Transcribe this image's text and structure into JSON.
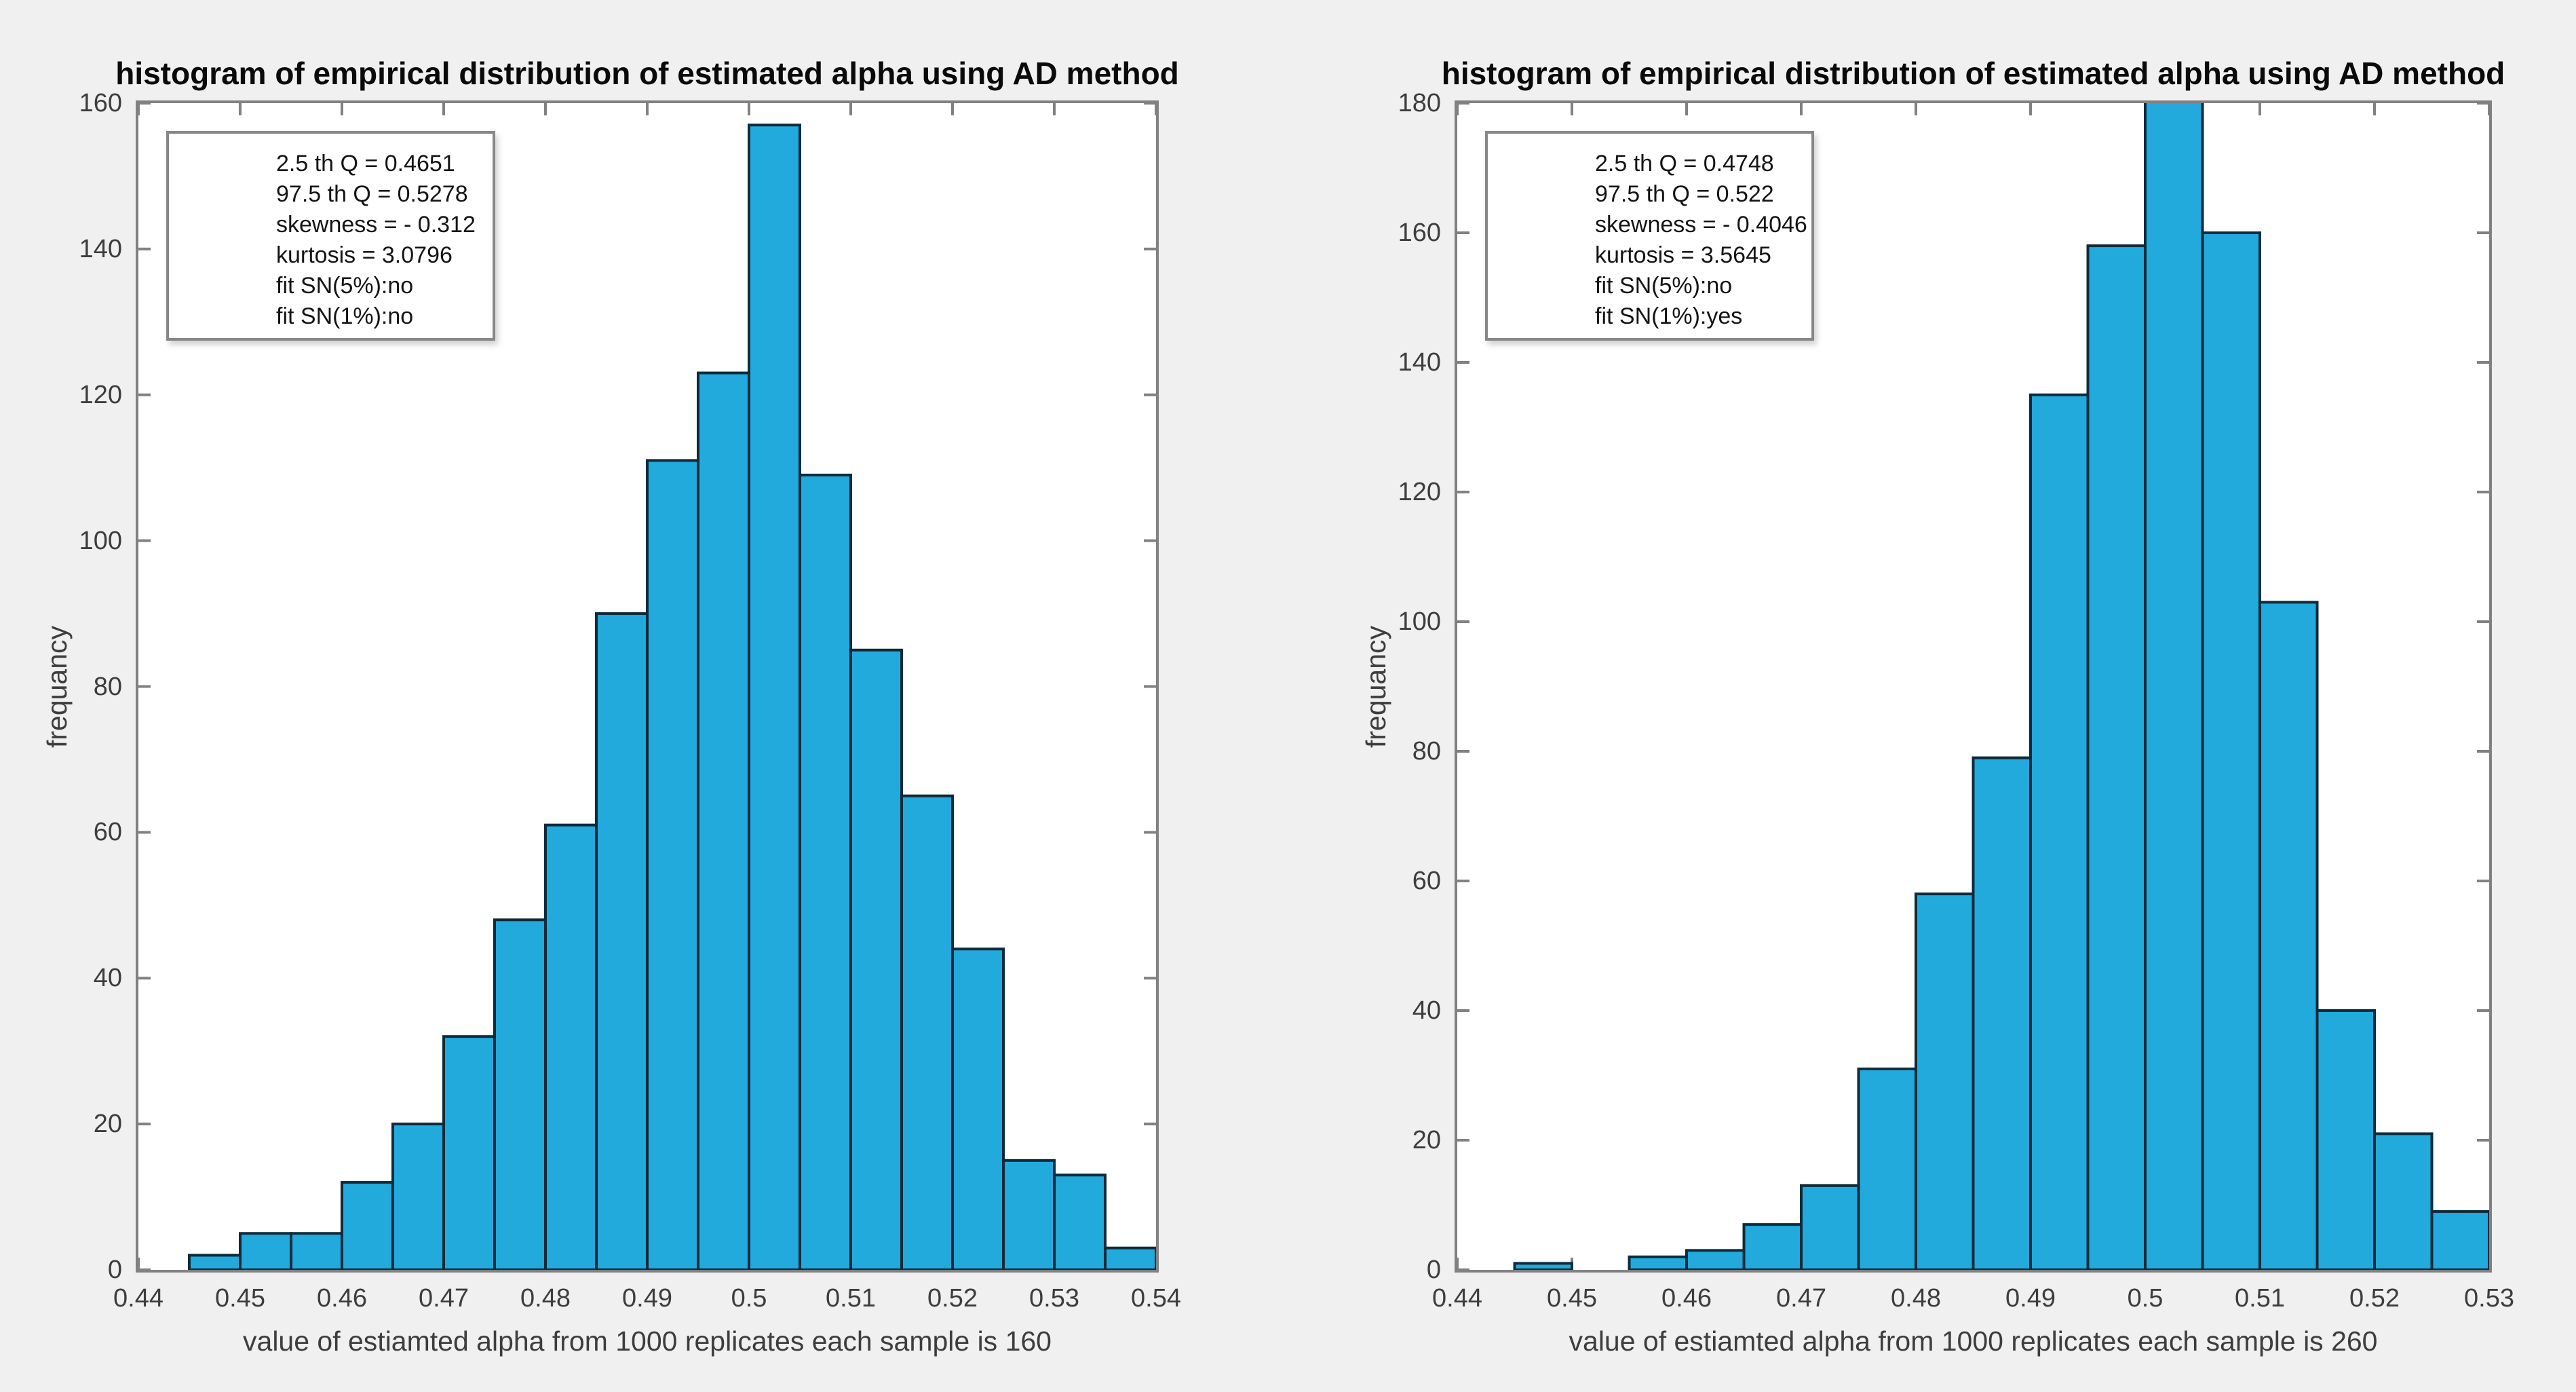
{
  "figure": {
    "background_color": "#F0F0F0",
    "plot_background_color": "#FFFFFF"
  },
  "colors": {
    "bar_fill": "#22AADD",
    "bar_edge": "#0E2B3B",
    "axis_line": "#818181",
    "tick_text": "#3D3D3D",
    "title_text": "#0A0A0A",
    "stats_border": "#878787"
  },
  "chart_data": [
    {
      "type": "bar",
      "title": "histogram of empirical distribution of estimated alpha using AD method",
      "xlabel": "value of estiamted alpha from 1000 replicates each sample is 160",
      "ylabel": "frequancy",
      "xlim": [
        0.44,
        0.54
      ],
      "ylim": [
        0,
        160
      ],
      "xtick_labels": [
        "0.44",
        "0.45",
        "0.46",
        "0.47",
        "0.48",
        "0.49",
        "0.5",
        "0.51",
        "0.52",
        "0.53",
        "0.54"
      ],
      "ytick_labels": [
        "0",
        "20",
        "40",
        "60",
        "80",
        "100",
        "120",
        "140",
        "160"
      ],
      "grid": false,
      "legend": "none",
      "bin_width": 0.005,
      "bin_starts": [
        0.445,
        0.45,
        0.455,
        0.46,
        0.465,
        0.47,
        0.475,
        0.48,
        0.485,
        0.49,
        0.495,
        0.5,
        0.505,
        0.51,
        0.515,
        0.52,
        0.525,
        0.53,
        0.535
      ],
      "counts": [
        2,
        5,
        5,
        12,
        20,
        32,
        48,
        61,
        90,
        111,
        123,
        157,
        109,
        85,
        65,
        44,
        15,
        13,
        3
      ],
      "annotation": {
        "lines": [
          "2.5 th Q = 0.4651",
          "97.5 th Q = 0.5278",
          "skewness = - 0.312",
          "kurtosis = 3.0796",
          "fit SN(5%):no",
          "fit SN(1%):no"
        ]
      }
    },
    {
      "type": "bar",
      "title": "histogram of empirical distribution of estimated alpha using AD method",
      "xlabel": "value of estiamted alpha from 1000 replicates each sample is 260",
      "ylabel": "frequancy",
      "xlim": [
        0.44,
        0.53
      ],
      "ylim": [
        0,
        180
      ],
      "xtick_labels": [
        "0.44",
        "0.45",
        "0.46",
        "0.47",
        "0.48",
        "0.49",
        "0.5",
        "0.51",
        "0.52",
        "0.53"
      ],
      "ytick_labels": [
        "0",
        "20",
        "40",
        "60",
        "80",
        "100",
        "120",
        "140",
        "160",
        "180"
      ],
      "grid": false,
      "legend": "none",
      "bin_width": 0.005,
      "bin_starts": [
        0.445,
        0.45,
        0.455,
        0.46,
        0.465,
        0.47,
        0.475,
        0.48,
        0.485,
        0.49,
        0.495,
        0.5,
        0.505,
        0.51,
        0.515,
        0.52,
        0.525
      ],
      "counts": [
        1,
        0,
        2,
        3,
        7,
        13,
        31,
        58,
        79,
        135,
        158,
        180,
        160,
        103,
        40,
        21,
        9
      ],
      "annotation": {
        "lines": [
          "2.5 th Q = 0.4748",
          "97.5 th Q = 0.522",
          "skewness = - 0.4046",
          "kurtosis = 3.5645",
          "fit SN(5%):no",
          "fit SN(1%):yes"
        ]
      }
    }
  ]
}
